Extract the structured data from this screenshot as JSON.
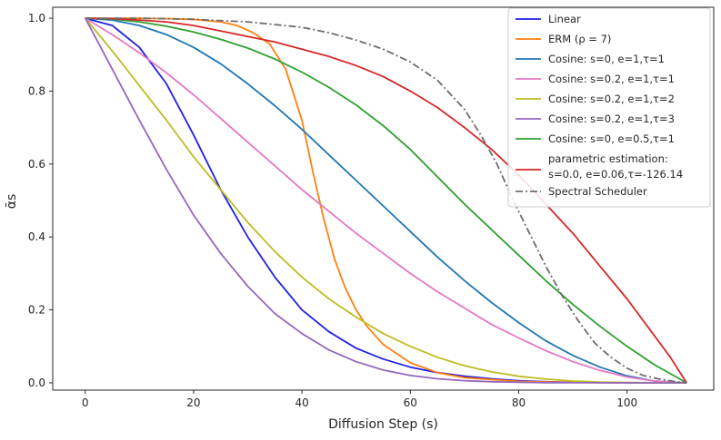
{
  "chart_data": {
    "type": "line",
    "title": "",
    "xlabel": "Diffusion Step (s)",
    "ylabel": "ᾱs",
    "xlim": [
      -6,
      116
    ],
    "ylim": [
      -0.02,
      1.03
    ],
    "xticks": [
      0,
      20,
      40,
      60,
      80,
      100
    ],
    "yticks": [
      0.0,
      0.2,
      0.4,
      0.6,
      0.8,
      1.0
    ],
    "xtick_labels": [
      "0",
      "20",
      "40",
      "60",
      "80",
      "100"
    ],
    "ytick_labels": [
      "0.0",
      "0.2",
      "0.4",
      "0.6",
      "0.8",
      "1.0"
    ],
    "legend_position": "top-right",
    "series": [
      {
        "name": "Linear",
        "color": "#1f1fe6",
        "dash": "solid",
        "x": [
          0,
          5,
          10,
          15,
          20,
          25,
          30,
          35,
          40,
          45,
          50,
          55,
          60,
          65,
          70,
          75,
          80,
          85,
          90,
          95,
          100,
          105,
          111
        ],
        "y": [
          1.0,
          0.98,
          0.92,
          0.82,
          0.68,
          0.53,
          0.4,
          0.29,
          0.2,
          0.14,
          0.095,
          0.065,
          0.043,
          0.028,
          0.018,
          0.011,
          0.006,
          0.003,
          0.0015,
          0.0007,
          0.0003,
          0.0001,
          0.0
        ]
      },
      {
        "name": "ERM (ρ = 7)",
        "color": "#ff7f0e",
        "dash": "solid",
        "x": [
          0,
          5,
          10,
          15,
          20,
          25,
          28,
          31,
          34,
          37,
          40,
          42,
          44,
          46,
          48,
          50,
          52,
          55,
          60,
          65,
          70,
          80,
          90,
          100,
          111
        ],
        "y": [
          1.0,
          1.0,
          1.0,
          0.999,
          0.997,
          0.99,
          0.98,
          0.96,
          0.93,
          0.86,
          0.72,
          0.58,
          0.45,
          0.34,
          0.26,
          0.2,
          0.155,
          0.105,
          0.055,
          0.028,
          0.014,
          0.004,
          0.001,
          0.0002,
          0.0
        ]
      },
      {
        "name": "Cosine: s=0, e=1,τ=1",
        "color": "#1f77b4",
        "dash": "solid",
        "x": [
          0,
          5,
          10,
          15,
          20,
          25,
          30,
          35,
          40,
          45,
          50,
          55,
          60,
          65,
          70,
          75,
          80,
          85,
          90,
          95,
          100,
          105,
          111
        ],
        "y": [
          1.0,
          0.995,
          0.98,
          0.955,
          0.92,
          0.875,
          0.82,
          0.76,
          0.695,
          0.625,
          0.555,
          0.485,
          0.415,
          0.345,
          0.28,
          0.22,
          0.165,
          0.115,
          0.075,
          0.043,
          0.019,
          0.005,
          0.0
        ]
      },
      {
        "name": "Cosine: s=0.2, e=1,τ=1",
        "color": "#e377c2",
        "dash": "solid",
        "x": [
          0,
          5,
          10,
          15,
          20,
          25,
          30,
          35,
          40,
          45,
          50,
          55,
          60,
          65,
          70,
          75,
          80,
          85,
          90,
          95,
          100,
          105,
          111
        ],
        "y": [
          1.0,
          0.955,
          0.905,
          0.85,
          0.79,
          0.725,
          0.66,
          0.595,
          0.53,
          0.47,
          0.41,
          0.355,
          0.3,
          0.25,
          0.205,
          0.16,
          0.123,
          0.088,
          0.058,
          0.034,
          0.016,
          0.005,
          0.0
        ]
      },
      {
        "name": "Cosine: s=0.2, e=1,τ=2",
        "color": "#bcbd22",
        "dash": "solid",
        "x": [
          0,
          5,
          10,
          15,
          20,
          25,
          30,
          35,
          40,
          45,
          50,
          55,
          60,
          65,
          70,
          75,
          80,
          85,
          90,
          95,
          100,
          105,
          111
        ],
        "y": [
          1.0,
          0.91,
          0.815,
          0.72,
          0.62,
          0.53,
          0.44,
          0.36,
          0.29,
          0.23,
          0.18,
          0.135,
          0.1,
          0.07,
          0.047,
          0.03,
          0.018,
          0.01,
          0.005,
          0.002,
          0.0008,
          0.0002,
          0.0
        ]
      },
      {
        "name": "Cosine: s=0.2, e=1,τ=3",
        "color": "#9467bd",
        "dash": "solid",
        "x": [
          0,
          5,
          10,
          15,
          20,
          25,
          30,
          35,
          40,
          45,
          50,
          55,
          60,
          65,
          70,
          75,
          80,
          85,
          90,
          95,
          100,
          105,
          111
        ],
        "y": [
          1.0,
          0.86,
          0.72,
          0.585,
          0.46,
          0.355,
          0.265,
          0.19,
          0.135,
          0.09,
          0.058,
          0.035,
          0.02,
          0.011,
          0.006,
          0.003,
          0.0013,
          0.0005,
          0.0002,
          0.0001,
          0.0,
          0.0,
          0.0
        ]
      },
      {
        "name": "Cosine: s=0, e=0.5,τ=1",
        "color": "#2ca02c",
        "dash": "solid",
        "x": [
          0,
          5,
          10,
          15,
          20,
          25,
          30,
          35,
          40,
          45,
          50,
          55,
          60,
          65,
          70,
          75,
          80,
          85,
          90,
          95,
          100,
          105,
          111
        ],
        "y": [
          1.0,
          0.998,
          0.99,
          0.978,
          0.962,
          0.942,
          0.918,
          0.888,
          0.852,
          0.81,
          0.762,
          0.705,
          0.64,
          0.565,
          0.49,
          0.42,
          0.35,
          0.28,
          0.215,
          0.155,
          0.1,
          0.05,
          0.0
        ]
      },
      {
        "name": "parametric estimation:",
        "name2": " s=0.0, e=0.06,τ=-126.14",
        "color": "#d62728",
        "dash": "solid",
        "x": [
          0,
          5,
          10,
          15,
          20,
          25,
          30,
          35,
          40,
          45,
          50,
          55,
          60,
          65,
          70,
          75,
          80,
          85,
          90,
          95,
          100,
          105,
          108,
          111
        ],
        "y": [
          1.0,
          0.999,
          0.995,
          0.99,
          0.98,
          0.965,
          0.95,
          0.935,
          0.915,
          0.895,
          0.87,
          0.84,
          0.8,
          0.755,
          0.7,
          0.64,
          0.57,
          0.49,
          0.41,
          0.32,
          0.23,
          0.13,
          0.07,
          0.0
        ]
      },
      {
        "name": "Spectral Scheduler",
        "color": "#6d6d6d",
        "dash": "dashdot",
        "x": [
          0,
          10,
          20,
          30,
          40,
          45,
          50,
          55,
          60,
          65,
          70,
          73,
          76,
          79,
          82,
          85,
          88,
          91,
          94,
          97,
          100,
          103,
          106,
          109,
          111
        ],
        "y": [
          1.0,
          1.0,
          0.997,
          0.99,
          0.975,
          0.96,
          0.94,
          0.915,
          0.88,
          0.83,
          0.75,
          0.68,
          0.6,
          0.5,
          0.41,
          0.32,
          0.24,
          0.17,
          0.11,
          0.07,
          0.04,
          0.02,
          0.01,
          0.003,
          0.0
        ]
      }
    ]
  }
}
